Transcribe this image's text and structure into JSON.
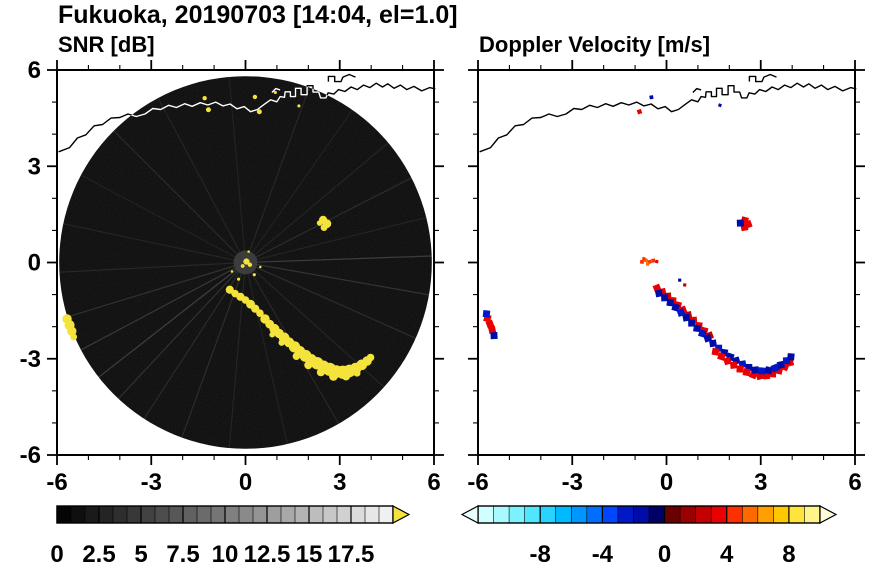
{
  "title": "Fukuoka, 20190703 [14:04, el=1.0]",
  "panels": {
    "snr": {
      "label": "SNR [dB]"
    },
    "vel": {
      "label": "Doppler Velocity [m/s]"
    }
  },
  "coastline": {
    "black_color": "#000000",
    "over_disk_color": "#ffffff",
    "paths": [
      [
        [
          -5.95,
          3.45
        ],
        [
          -5.6,
          3.58
        ],
        [
          -5.35,
          3.88
        ],
        [
          -5.08,
          3.98
        ],
        [
          -4.82,
          4.26
        ],
        [
          -4.55,
          4.3
        ],
        [
          -4.28,
          4.5
        ],
        [
          -4.0,
          4.52
        ],
        [
          -3.74,
          4.63
        ],
        [
          -3.48,
          4.55
        ],
        [
          -3.2,
          4.63
        ],
        [
          -2.95,
          4.8
        ],
        [
          -2.7,
          4.77
        ],
        [
          -2.44,
          4.9
        ],
        [
          -2.2,
          4.83
        ],
        [
          -1.94,
          4.95
        ],
        [
          -1.7,
          4.87
        ],
        [
          -1.44,
          4.98
        ],
        [
          -1.2,
          4.91
        ],
        [
          -0.95,
          5.0
        ],
        [
          -0.72,
          4.88
        ],
        [
          -0.49,
          4.94
        ],
        [
          -0.27,
          4.79
        ],
        [
          -0.04,
          4.86
        ],
        [
          0.16,
          4.7
        ],
        [
          0.38,
          4.77
        ],
        [
          0.6,
          4.93
        ],
        [
          0.8,
          5.07
        ],
        [
          1.0,
          5.01
        ],
        [
          1.1,
          5.17
        ],
        [
          1.24,
          5.15
        ],
        [
          1.26,
          5.32
        ],
        [
          1.43,
          5.32
        ],
        [
          1.43,
          5.17
        ],
        [
          1.59,
          5.17
        ],
        [
          1.59,
          5.43
        ],
        [
          1.77,
          5.43
        ],
        [
          1.77,
          5.23
        ],
        [
          1.96,
          5.23
        ],
        [
          1.96,
          5.51
        ],
        [
          2.15,
          5.51
        ],
        [
          2.15,
          5.31
        ],
        [
          2.33,
          5.31
        ],
        [
          2.39,
          5.13
        ],
        [
          2.56,
          5.13
        ],
        [
          2.63,
          5.29
        ],
        [
          2.81,
          5.25
        ],
        [
          2.96,
          5.39
        ],
        [
          3.16,
          5.33
        ],
        [
          3.36,
          5.47
        ],
        [
          3.56,
          5.39
        ],
        [
          3.76,
          5.53
        ],
        [
          3.96,
          5.45
        ],
        [
          4.16,
          5.59
        ],
        [
          4.36,
          5.47
        ],
        [
          4.53,
          5.57
        ],
        [
          4.73,
          5.43
        ],
        [
          4.93,
          5.53
        ],
        [
          5.13,
          5.39
        ],
        [
          5.36,
          5.49
        ],
        [
          5.61,
          5.35
        ],
        [
          5.86,
          5.45
        ],
        [
          6.04,
          5.41
        ]
      ],
      [
        [
          2.64,
          5.64
        ],
        [
          2.64,
          5.8
        ],
        [
          2.84,
          5.8
        ],
        [
          2.84,
          5.64
        ],
        [
          3.04,
          5.64
        ],
        [
          3.1,
          5.78
        ],
        [
          3.3,
          5.86
        ],
        [
          3.5,
          5.78
        ]
      ],
      [
        [
          0.84,
          5.3
        ],
        [
          0.96,
          5.42
        ],
        [
          1.1,
          5.38
        ]
      ]
    ]
  },
  "chart_data": [
    {
      "type": "heatmap",
      "id": "snr",
      "title": "SNR [dB]",
      "xlabel": "",
      "ylabel": "",
      "xlim": [
        -6,
        6
      ],
      "ylim": [
        -6,
        6
      ],
      "xticks": [
        -6,
        -3,
        0,
        3,
        6
      ],
      "yticks": [
        -6,
        -3,
        0,
        3,
        6
      ],
      "minor_tick_step": 1,
      "grid": false,
      "scan": {
        "radius": 5.93,
        "background": "#0a0a0a",
        "center_clutter_color": "#3c3c3c"
      },
      "echo_color": "#f4e33b",
      "palette": {
        "min": 0,
        "max": 20,
        "segments": 24,
        "low_color": "#000000",
        "high_color": "#f5f5f5",
        "over_color": "#f4e33b",
        "ticks": [
          0,
          2.5,
          5,
          7.5,
          10,
          12.5,
          15,
          17.5
        ]
      },
      "spokes_deg_opacity": [
        [
          2,
          0.3
        ],
        [
          14,
          0.12
        ],
        [
          27,
          0.18
        ],
        [
          40,
          0.12
        ],
        [
          55,
          0.1
        ],
        [
          70,
          0.14
        ],
        [
          95,
          0.1
        ],
        [
          118,
          0.12
        ],
        [
          135,
          0.16
        ],
        [
          152,
          0.1
        ],
        [
          168,
          0.12
        ],
        [
          183,
          0.14
        ],
        [
          197,
          0.22
        ],
        [
          208,
          0.28
        ],
        [
          218,
          0.32
        ],
        [
          227,
          0.22
        ],
        [
          237,
          0.16
        ],
        [
          250,
          0.18
        ],
        [
          265,
          0.12
        ],
        [
          283,
          0.1
        ],
        [
          300,
          0.14
        ],
        [
          318,
          0.12
        ],
        [
          336,
          0.18
        ],
        [
          350,
          0.24
        ]
      ],
      "echoes_xyr": [
        [
          -0.5,
          -0.85,
          0.13
        ],
        [
          -0.33,
          -0.97,
          0.12
        ],
        [
          -0.16,
          -1.07,
          0.13
        ],
        [
          0.0,
          -1.17,
          0.12
        ],
        [
          0.16,
          -1.3,
          0.14
        ],
        [
          0.31,
          -1.44,
          0.13
        ],
        [
          0.46,
          -1.58,
          0.12
        ],
        [
          0.62,
          -1.76,
          0.15
        ],
        [
          0.77,
          -1.92,
          0.14
        ],
        [
          0.92,
          -2.07,
          0.16
        ],
        [
          1.07,
          -2.21,
          0.15
        ],
        [
          1.23,
          -2.35,
          0.17
        ],
        [
          1.39,
          -2.49,
          0.16
        ],
        [
          1.56,
          -2.63,
          0.18
        ],
        [
          1.73,
          -2.77,
          0.17
        ],
        [
          1.91,
          -2.91,
          0.19
        ],
        [
          2.09,
          -3.03,
          0.18
        ],
        [
          2.28,
          -3.14,
          0.2
        ],
        [
          2.48,
          -3.24,
          0.19
        ],
        [
          2.68,
          -3.33,
          0.21
        ],
        [
          2.89,
          -3.4,
          0.2
        ],
        [
          3.1,
          -3.42,
          0.21
        ],
        [
          3.31,
          -3.38,
          0.2
        ],
        [
          3.51,
          -3.3,
          0.18
        ],
        [
          3.7,
          -3.19,
          0.17
        ],
        [
          3.87,
          -3.07,
          0.15
        ],
        [
          3.98,
          -2.96,
          0.12
        ],
        [
          1.62,
          -2.92,
          0.12
        ],
        [
          2.0,
          -3.2,
          0.13
        ],
        [
          2.4,
          -3.42,
          0.13
        ],
        [
          2.8,
          -3.55,
          0.14
        ],
        [
          3.2,
          -3.55,
          0.13
        ],
        [
          3.55,
          -3.45,
          0.11
        ],
        [
          1.15,
          -2.5,
          0.1
        ],
        [
          0.85,
          -2.25,
          0.09
        ],
        [
          -5.68,
          -1.76,
          0.15
        ],
        [
          -5.6,
          -1.95,
          0.16
        ],
        [
          -5.53,
          -2.14,
          0.15
        ],
        [
          -5.47,
          -2.32,
          0.11
        ],
        [
          2.47,
          1.33,
          0.13
        ],
        [
          2.59,
          1.21,
          0.14
        ],
        [
          2.5,
          1.09,
          0.11
        ],
        [
          2.36,
          1.23,
          0.09
        ],
        [
          0.03,
          0.03,
          0.1
        ],
        [
          0.14,
          -0.07,
          0.07
        ],
        [
          -0.09,
          -0.11,
          0.06
        ],
        [
          0.28,
          -0.38,
          0.05
        ],
        [
          -0.22,
          -0.52,
          0.05
        ],
        [
          0.47,
          -0.14,
          0.04
        ],
        [
          -0.43,
          -0.28,
          0.04
        ],
        [
          0.1,
          0.34,
          0.04
        ],
        [
          -1.3,
          5.12,
          0.07
        ],
        [
          -1.18,
          4.76,
          0.08
        ],
        [
          0.3,
          5.16,
          0.07
        ],
        [
          0.44,
          4.7,
          0.08
        ],
        [
          1.7,
          4.88,
          0.05
        ],
        [
          0.95,
          5.3,
          0.05
        ]
      ]
    },
    {
      "type": "scatter",
      "id": "vel",
      "title": "Doppler Velocity [m/s]",
      "xlabel": "",
      "ylabel": "",
      "xlim": [
        -6,
        6
      ],
      "ylim": [
        -6,
        6
      ],
      "xticks": [
        -6,
        -3,
        0,
        3,
        6
      ],
      "yticks": [
        -6,
        -3,
        0,
        3,
        6
      ],
      "minor_tick_step": 1,
      "grid": false,
      "palette": {
        "min": -12,
        "max": 10,
        "ticks": [
          -8,
          -4,
          0,
          4,
          8
        ],
        "colors": [
          "#d0ffff",
          "#a8faff",
          "#7cf2ff",
          "#50e6ff",
          "#28d4ff",
          "#00baff",
          "#0096ff",
          "#006eff",
          "#0046ff",
          "#0018c8",
          "#000caa",
          "#000066",
          "#6a0000",
          "#9a0000",
          "#c40000",
          "#ea0000",
          "#ff3000",
          "#ff6a00",
          "#ffa000",
          "#ffc800",
          "#ffe43c",
          "#fff489"
        ],
        "under_color": "#eaffff",
        "over_color": "#fffbd8"
      },
      "points_xyv": [
        [
          -0.3,
          -0.8,
          3
        ],
        [
          -0.13,
          -0.92,
          3
        ],
        [
          0.04,
          -1.05,
          2.5
        ],
        [
          0.2,
          -1.19,
          3
        ],
        [
          0.36,
          -1.33,
          3.5
        ],
        [
          0.52,
          -1.48,
          3
        ],
        [
          0.69,
          -1.64,
          2.5
        ],
        [
          0.86,
          -1.8,
          3
        ],
        [
          1.03,
          -1.97,
          3.5
        ],
        [
          1.2,
          -2.13,
          3
        ],
        [
          1.37,
          -2.28,
          2.5
        ],
        [
          -0.24,
          -0.96,
          -2
        ],
        [
          -0.06,
          -1.1,
          -2
        ],
        [
          0.12,
          -1.25,
          -1.5
        ],
        [
          0.29,
          -1.4,
          -2
        ],
        [
          0.46,
          -1.56,
          -2.5
        ],
        [
          0.63,
          -1.72,
          -2
        ],
        [
          0.8,
          -1.89,
          -1.5
        ],
        [
          0.97,
          -2.05,
          -2
        ],
        [
          1.14,
          -2.21,
          -2.5
        ],
        [
          1.31,
          -2.36,
          -2
        ],
        [
          1.48,
          -2.52,
          -2
        ],
        [
          1.66,
          -2.67,
          -2.5
        ],
        [
          1.84,
          -2.81,
          -2
        ],
        [
          2.03,
          -2.94,
          -1.5
        ],
        [
          2.22,
          -3.06,
          -2
        ],
        [
          2.42,
          -3.17,
          -2.5
        ],
        [
          2.62,
          -3.27,
          -2
        ],
        [
          1.56,
          -2.78,
          3
        ],
        [
          1.75,
          -2.93,
          3.5
        ],
        [
          1.94,
          -3.07,
          3
        ],
        [
          2.14,
          -3.2,
          3.5
        ],
        [
          2.34,
          -3.32,
          3
        ],
        [
          2.55,
          -3.42,
          3.5
        ],
        [
          2.76,
          -3.5,
          3
        ],
        [
          2.97,
          -3.54,
          3.5
        ],
        [
          3.18,
          -3.53,
          3
        ],
        [
          3.38,
          -3.47,
          3.5
        ],
        [
          3.58,
          -3.37,
          3
        ],
        [
          3.77,
          -3.25,
          3.5
        ],
        [
          3.93,
          -3.12,
          3
        ],
        [
          2.83,
          -3.35,
          -2
        ],
        [
          3.04,
          -3.38,
          -2.5
        ],
        [
          3.25,
          -3.36,
          -2
        ],
        [
          3.45,
          -3.29,
          -2.5
        ],
        [
          3.64,
          -3.19,
          -2
        ],
        [
          3.82,
          -3.06,
          -2.5
        ],
        [
          3.96,
          -2.94,
          -2
        ],
        [
          -5.7,
          -1.74,
          3
        ],
        [
          -5.62,
          -1.92,
          3.5
        ],
        [
          -5.55,
          -2.1,
          3
        ],
        [
          -5.49,
          -2.28,
          -2
        ],
        [
          -5.73,
          -1.6,
          -2.5
        ],
        [
          2.49,
          1.31,
          3
        ],
        [
          2.6,
          1.19,
          3.5
        ],
        [
          2.48,
          1.1,
          3
        ],
        [
          2.35,
          1.23,
          -2
        ],
        [
          -0.78,
          0.02,
          4.5,
          0.06
        ],
        [
          -0.66,
          0.07,
          5,
          0.06
        ],
        [
          -0.54,
          0.02,
          4,
          0.06
        ],
        [
          -0.42,
          0.06,
          4.5,
          0.06
        ],
        [
          -0.6,
          -0.05,
          5,
          0.05
        ],
        [
          -0.72,
          0.12,
          4,
          0.05
        ],
        [
          -0.31,
          0.03,
          3,
          0.05
        ],
        [
          -0.86,
          4.7,
          3,
          0.07
        ],
        [
          -0.48,
          5.15,
          -2,
          0.06
        ],
        [
          0.42,
          -0.55,
          -1.5,
          0.05
        ],
        [
          0.58,
          -0.7,
          2.5,
          0.05
        ],
        [
          1.7,
          4.9,
          -2,
          0.05
        ]
      ]
    }
  ]
}
